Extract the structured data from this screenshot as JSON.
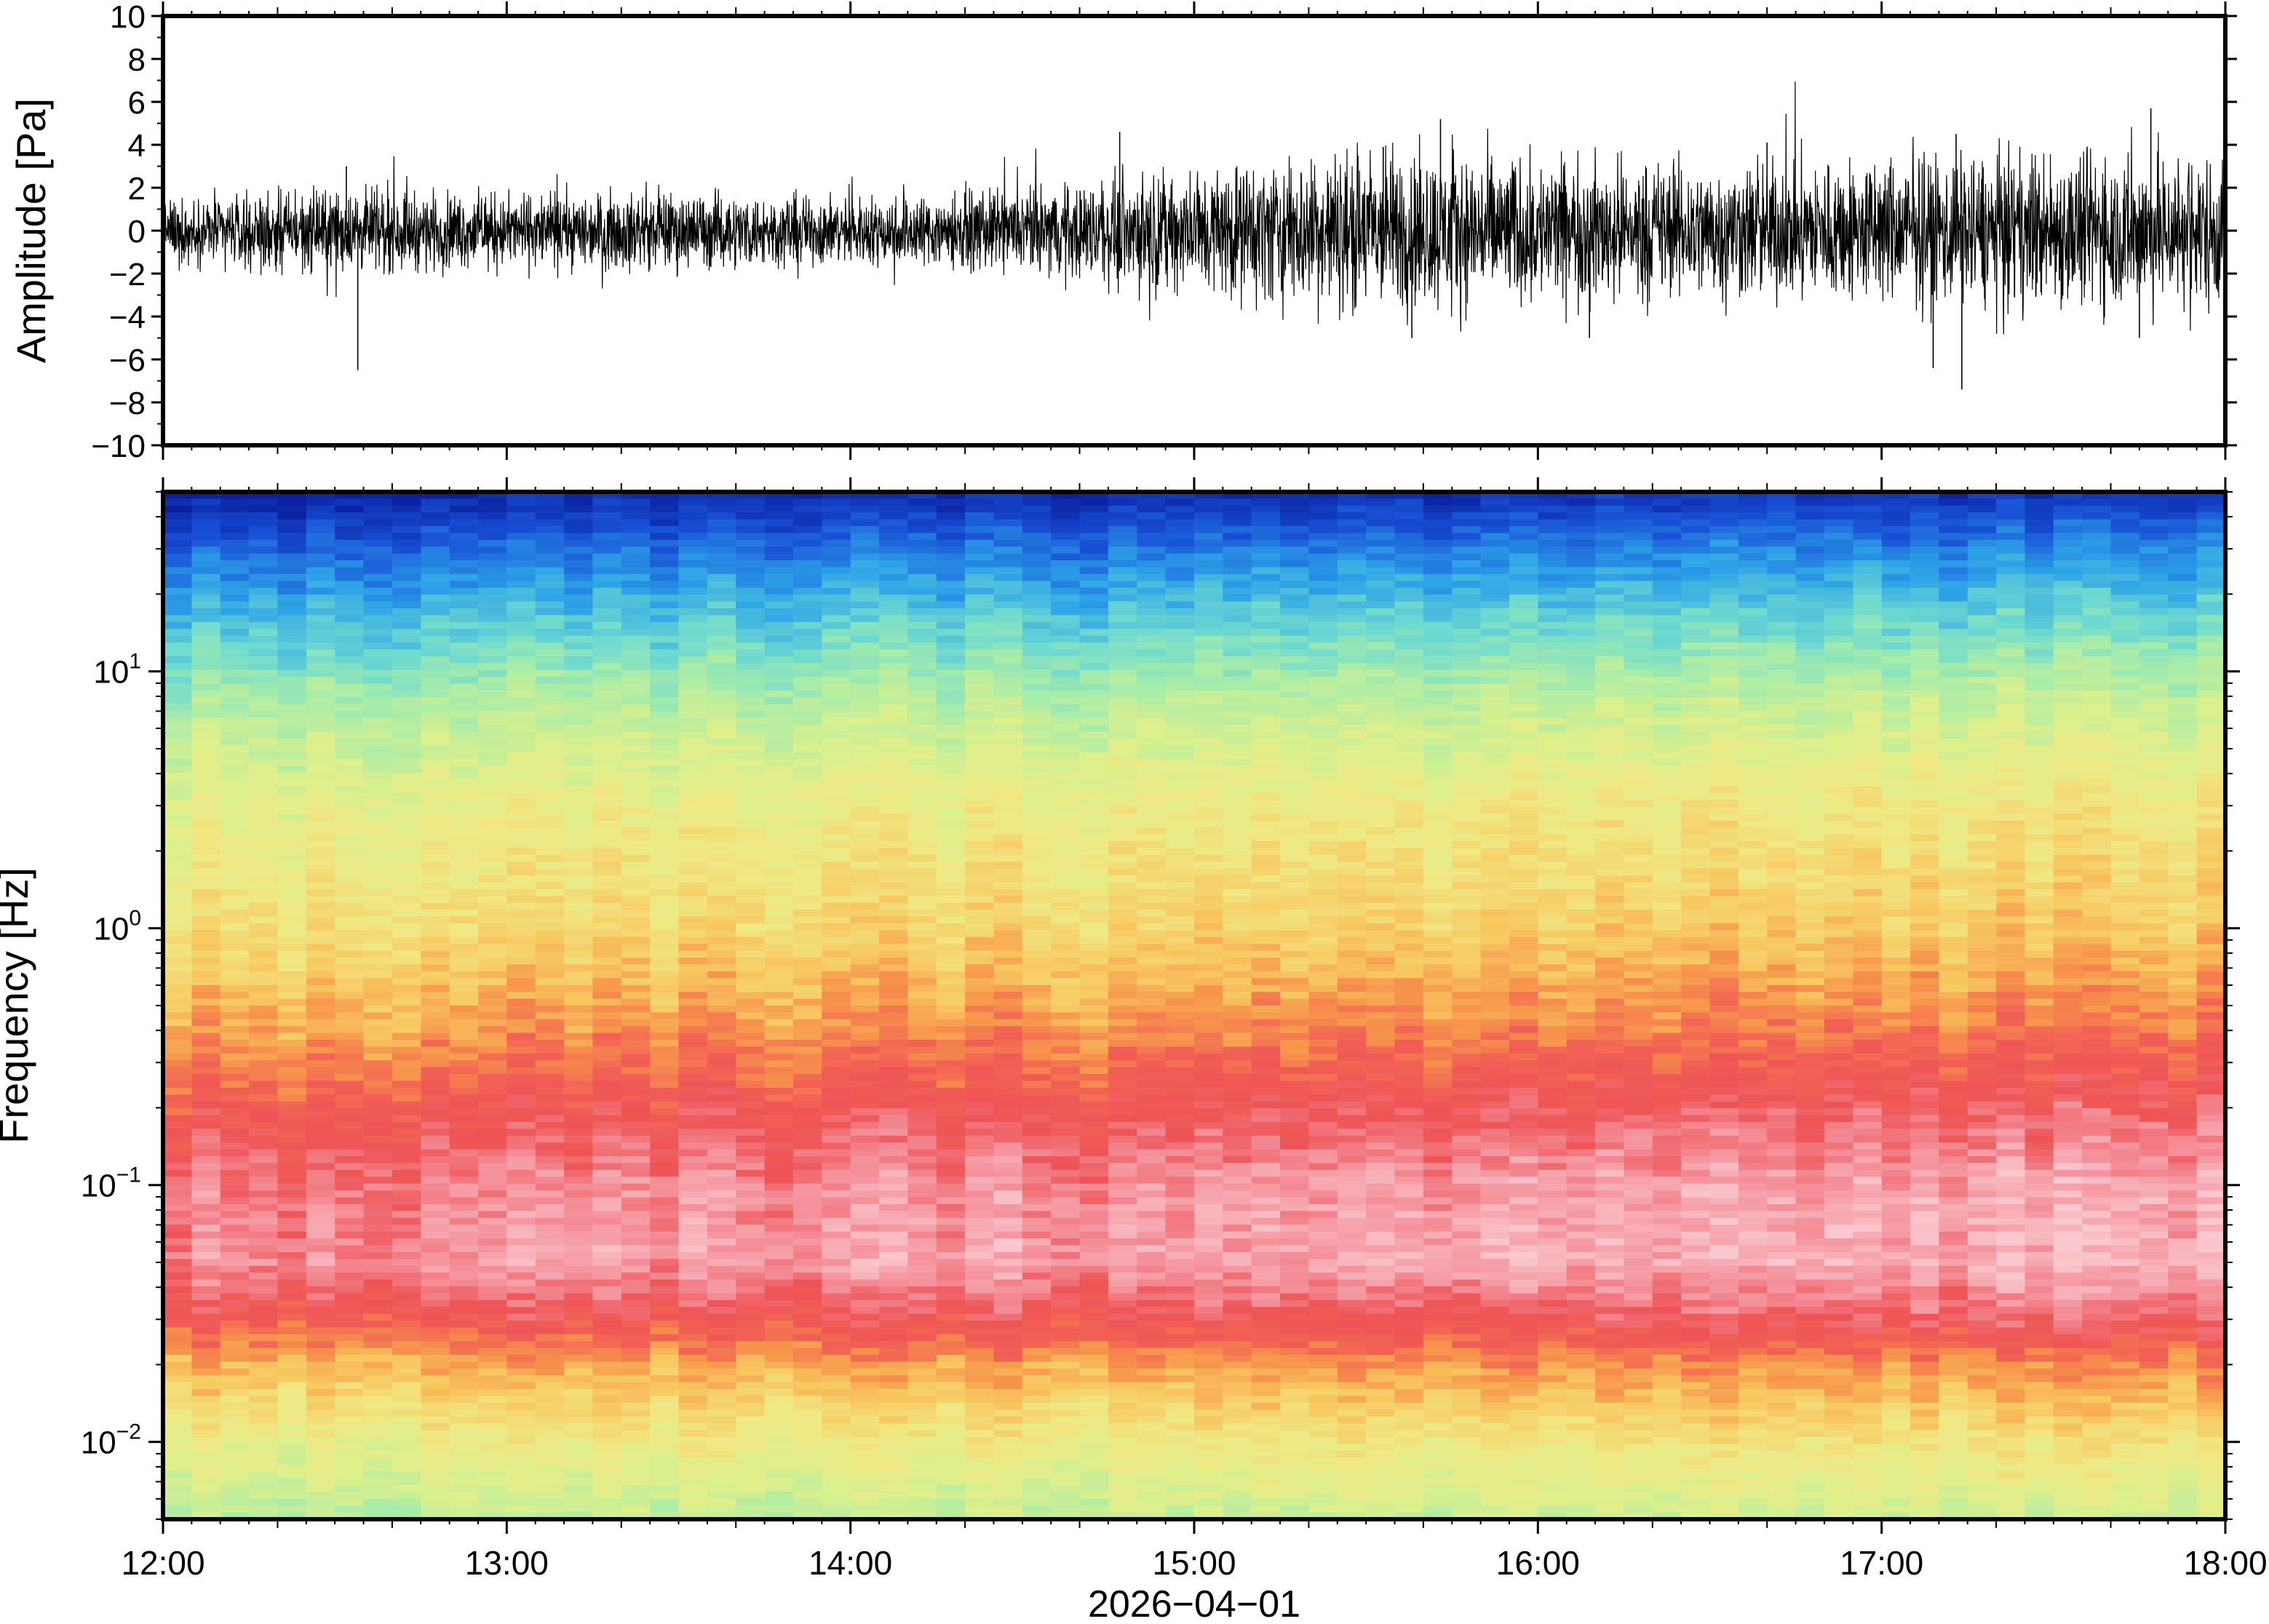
{
  "chart_data": [
    {
      "type": "line",
      "panel": "waveform",
      "ylabel": "Amplitude [Pa]",
      "ylim": [
        -10,
        10
      ],
      "yticks": [
        10,
        8,
        6,
        4,
        2,
        0,
        -2,
        -4,
        -6,
        -8,
        -10
      ],
      "ytick_labels": [
        "10",
        "8",
        "6",
        "4",
        "2",
        "0",
        "−2",
        "−4",
        "−6",
        "−8",
        "−10"
      ],
      "x_range": [
        "12:00",
        "18:00"
      ],
      "series": [
        {
          "values_description_hours": [
            12.0,
            12.5,
            13.0,
            13.5,
            14.0,
            14.5,
            15.0,
            15.5,
            16.0,
            16.5,
            17.0,
            17.5,
            18.0
          ],
          "envelope_pa": [
            1.2,
            1.6,
            1.4,
            1.5,
            1.3,
            1.6,
            2.4,
            3.2,
            2.8,
            2.6,
            2.8,
            3.0,
            3.0
          ]
        }
      ],
      "spikes": [
        {
          "x": "12:34",
          "y": -6.5
        },
        {
          "x": "12:32",
          "y": 3.0
        },
        {
          "x": "14:47",
          "y": 4.6
        },
        {
          "x": "15:33",
          "y": 3.9
        },
        {
          "x": "15:43",
          "y": 5.2
        },
        {
          "x": "15:38",
          "y": -5.0
        },
        {
          "x": "16:09",
          "y": -5.0
        },
        {
          "x": "16:40",
          "y": 4.1
        },
        {
          "x": "17:09",
          "y": -6.4
        },
        {
          "x": "17:13",
          "y": 4.5
        },
        {
          "x": "17:14",
          "y": -7.4
        },
        {
          "x": "17:47",
          "y": 5.7
        },
        {
          "x": "17:45",
          "y": -5.0
        }
      ]
    },
    {
      "type": "heatmap",
      "panel": "spectrogram",
      "ylabel": "Frequency [Hz]",
      "yscale": "log",
      "ylim": [
        0.005,
        50
      ],
      "ytick_labels": [
        {
          "value": 10,
          "base": "10",
          "exp": "1"
        },
        {
          "value": 1,
          "base": "10",
          "exp": "0"
        },
        {
          "value": 0.1,
          "base": "10",
          "exp": "−1"
        },
        {
          "value": 0.01,
          "base": "10",
          "exp": "−2"
        }
      ],
      "x_range": [
        "12:00",
        "18:00"
      ],
      "xticks": [
        "12:00",
        "13:00",
        "14:00",
        "15:00",
        "16:00",
        "17:00",
        "18:00"
      ],
      "xlabel": "2026−04−01",
      "colormap": "rainbow (blue = low power, pink/white = high power)",
      "colors": {
        "low": "#0a1f9e",
        "mid_low": "#2da3e8",
        "mid": "#8fe8b0",
        "mid_high": "#e9f08a",
        "high": "#f9a94a",
        "higher": "#f25a5a",
        "peak": "#f8b8c0"
      },
      "power_profile_by_frequency": [
        {
          "freq_hz": 50,
          "level": 0.0
        },
        {
          "freq_hz": 30,
          "level": 0.15
        },
        {
          "freq_hz": 15,
          "level": 0.3
        },
        {
          "freq_hz": 8,
          "level": 0.42
        },
        {
          "freq_hz": 3,
          "level": 0.55
        },
        {
          "freq_hz": 1,
          "level": 0.62
        },
        {
          "freq_hz": 0.4,
          "level": 0.72
        },
        {
          "freq_hz": 0.2,
          "level": 0.82
        },
        {
          "freq_hz": 0.1,
          "level": 0.9
        },
        {
          "freq_hz": 0.05,
          "level": 0.92
        },
        {
          "freq_hz": 0.03,
          "level": 0.82
        },
        {
          "freq_hz": 0.02,
          "level": 0.7
        },
        {
          "freq_hz": 0.01,
          "level": 0.56
        },
        {
          "freq_hz": 0.005,
          "level": 0.45
        }
      ]
    }
  ],
  "colors": {
    "waveform": "#000000",
    "frame": "#000000",
    "background": "#ffffff"
  }
}
